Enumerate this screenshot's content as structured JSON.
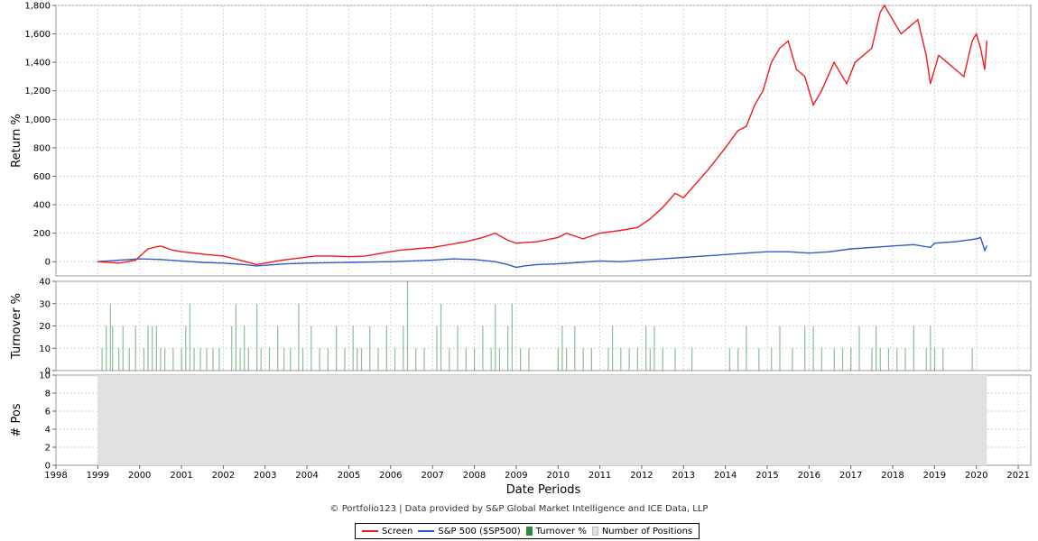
{
  "credit": "© Portfolio123 | Data provided by S&P Global Market Intelligence and ICE Data, LLP",
  "colors": {
    "screen": "#ee1c1c",
    "benchmark": "#2f5bc4",
    "turnover": "#2e8b3e",
    "positions": "#e0e0e0",
    "grid": "#d6d6d6"
  },
  "chart_data": [
    {
      "type": "line",
      "ylabel": "Return %",
      "xlabel": "Date Periods",
      "xlim": [
        1998,
        2021.3
      ],
      "ylim": [
        -100,
        1800
      ],
      "yticks": [
        0,
        200,
        400,
        600,
        800,
        1000,
        1200,
        1400,
        1600,
        1800
      ],
      "ytick_labels": [
        "0",
        "200",
        "400",
        "600",
        "800",
        "1,000",
        "1,200",
        "1,400",
        "1,600",
        "1,800"
      ],
      "xticks": [
        1998,
        1999,
        2000,
        2001,
        2002,
        2003,
        2004,
        2005,
        2006,
        2007,
        2008,
        2009,
        2010,
        2011,
        2012,
        2013,
        2014,
        2015,
        2016,
        2017,
        2018,
        2019,
        2020,
        2021
      ],
      "grid": true,
      "series": [
        {
          "name": "Screen",
          "x": [
            1999.0,
            1999.5,
            1999.9,
            2000.2,
            2000.5,
            2000.8,
            2001.0,
            2001.3,
            2001.6,
            2002.0,
            2002.4,
            2002.8,
            2003.0,
            2003.4,
            2003.8,
            2004.2,
            2004.6,
            2005.0,
            2005.4,
            2005.8,
            2006.2,
            2006.6,
            2007.0,
            2007.4,
            2007.8,
            2008.2,
            2008.5,
            2008.8,
            2009.0,
            2009.5,
            2010.0,
            2010.2,
            2010.6,
            2011.0,
            2011.5,
            2011.9,
            2012.2,
            2012.5,
            2012.8,
            2013.0,
            2013.3,
            2013.6,
            2014.0,
            2014.3,
            2014.5,
            2014.7,
            2014.9,
            2015.1,
            2015.3,
            2015.5,
            2015.7,
            2015.9,
            2016.1,
            2016.3,
            2016.6,
            2016.9,
            2017.1,
            2017.3,
            2017.5,
            2017.7,
            2017.8,
            2018.0,
            2018.2,
            2018.4,
            2018.6,
            2018.8,
            2018.9,
            2019.1,
            2019.3,
            2019.5,
            2019.7,
            2019.9,
            2020.0,
            2020.1,
            2020.2,
            2020.25
          ],
          "y": [
            0,
            -10,
            10,
            90,
            110,
            80,
            70,
            60,
            50,
            40,
            10,
            -20,
            -10,
            10,
            25,
            40,
            40,
            35,
            40,
            60,
            80,
            90,
            100,
            120,
            140,
            170,
            200,
            150,
            130,
            140,
            170,
            200,
            160,
            200,
            220,
            240,
            300,
            380,
            480,
            450,
            550,
            650,
            800,
            920,
            950,
            1100,
            1200,
            1400,
            1500,
            1550,
            1350,
            1300,
            1100,
            1200,
            1400,
            1250,
            1400,
            1450,
            1500,
            1750,
            1800,
            1700,
            1600,
            1650,
            1700,
            1450,
            1250,
            1450,
            1400,
            1350,
            1300,
            1550,
            1600,
            1500,
            1350,
            1550
          ]
        },
        {
          "name": "S&P 500 ($SP500)",
          "x": [
            1999.0,
            1999.5,
            2000.0,
            2000.5,
            2001.0,
            2001.5,
            2002.0,
            2002.5,
            2002.8,
            2003.0,
            2003.5,
            2004.0,
            2005.0,
            2006.0,
            2007.0,
            2007.5,
            2008.0,
            2008.5,
            2008.8,
            2009.0,
            2009.2,
            2009.5,
            2010.0,
            2010.5,
            2011.0,
            2011.5,
            2012.0,
            2012.5,
            2013.0,
            2013.5,
            2014.0,
            2014.5,
            2015.0,
            2015.5,
            2016.0,
            2016.5,
            2017.0,
            2017.5,
            2018.0,
            2018.5,
            2018.9,
            2019.0,
            2019.5,
            2020.0,
            2020.1,
            2020.2,
            2020.25
          ],
          "y": [
            0,
            10,
            20,
            15,
            5,
            -5,
            -10,
            -20,
            -30,
            -25,
            -15,
            -10,
            -5,
            0,
            10,
            20,
            15,
            0,
            -20,
            -40,
            -30,
            -20,
            -15,
            -5,
            5,
            0,
            10,
            20,
            30,
            40,
            50,
            60,
            70,
            70,
            60,
            70,
            90,
            100,
            110,
            120,
            100,
            130,
            140,
            160,
            170,
            80,
            110
          ]
        }
      ]
    },
    {
      "type": "bar",
      "ylabel": "Turnover %",
      "ylim": [
        0,
        40
      ],
      "yticks": [
        0,
        10,
        20,
        30,
        40
      ],
      "ytick_labels": [
        "0",
        "10",
        "20",
        "30",
        "40"
      ],
      "series": [
        {
          "name": "Turnover %",
          "x": [
            1999.1,
            1999.2,
            1999.3,
            1999.35,
            1999.5,
            1999.6,
            1999.75,
            1999.9,
            2000.1,
            2000.2,
            2000.3,
            2000.4,
            2000.5,
            2000.6,
            2000.8,
            2001.0,
            2001.1,
            2001.2,
            2001.3,
            2001.45,
            2001.6,
            2001.75,
            2001.9,
            2002.2,
            2002.3,
            2002.4,
            2002.5,
            2002.6,
            2002.8,
            2002.9,
            2003.1,
            2003.3,
            2003.45,
            2003.6,
            2003.8,
            2003.9,
            2004.1,
            2004.3,
            2004.5,
            2004.7,
            2004.9,
            2005.1,
            2005.2,
            2005.3,
            2005.5,
            2005.7,
            2005.9,
            2006.1,
            2006.3,
            2006.4,
            2006.6,
            2006.8,
            2007.1,
            2007.2,
            2007.4,
            2007.6,
            2007.8,
            2008.0,
            2008.2,
            2008.4,
            2008.5,
            2008.6,
            2008.8,
            2008.9,
            2009.1,
            2009.3,
            2010.0,
            2010.1,
            2010.2,
            2010.4,
            2010.6,
            2010.8,
            2011.2,
            2011.3,
            2011.5,
            2011.7,
            2011.9,
            2012.1,
            2012.2,
            2012.3,
            2012.5,
            2012.8,
            2013.2,
            2014.1,
            2014.3,
            2014.5,
            2014.8,
            2015.1,
            2015.3,
            2015.6,
            2015.9,
            2016.1,
            2016.3,
            2016.6,
            2016.8,
            2017.0,
            2017.2,
            2017.5,
            2017.6,
            2017.7,
            2017.9,
            2018.1,
            2018.3,
            2018.5,
            2018.8,
            2018.9,
            2019.0,
            2019.2,
            2019.9
          ],
          "values": [
            10,
            20,
            30,
            20,
            10,
            20,
            10,
            20,
            10,
            20,
            20,
            20,
            10,
            10,
            10,
            10,
            20,
            30,
            10,
            10,
            10,
            10,
            10,
            20,
            30,
            10,
            20,
            10,
            30,
            10,
            10,
            20,
            10,
            10,
            30,
            10,
            20,
            10,
            10,
            20,
            10,
            20,
            10,
            10,
            20,
            10,
            20,
            10,
            20,
            40,
            10,
            10,
            20,
            30,
            10,
            20,
            10,
            10,
            20,
            10,
            30,
            10,
            20,
            30,
            10,
            10,
            10,
            20,
            10,
            20,
            10,
            10,
            10,
            20,
            10,
            10,
            10,
            20,
            10,
            20,
            10,
            10,
            10,
            10,
            10,
            20,
            10,
            10,
            20,
            10,
            20,
            20,
            10,
            10,
            10,
            10,
            20,
            10,
            20,
            10,
            10,
            10,
            10,
            20,
            10,
            20,
            10,
            10,
            10
          ]
        }
      ]
    },
    {
      "type": "area",
      "ylabel": "# Pos",
      "ylim": [
        0,
        10
      ],
      "yticks": [
        0,
        2,
        4,
        6,
        8,
        10
      ],
      "ytick_labels": [
        "0",
        "2",
        "4",
        "6",
        "8",
        "10"
      ],
      "series": [
        {
          "name": "Number of Positions",
          "x": [
            1999.0,
            2020.25
          ],
          "values": [
            10,
            10
          ]
        }
      ]
    }
  ],
  "legend": {
    "placement": "bottom-center",
    "items": [
      {
        "label": "Screen",
        "kind": "line",
        "color": "#ee1c1c"
      },
      {
        "label": "S&P 500 ($SP500)",
        "kind": "line",
        "color": "#2f5bc4"
      },
      {
        "label": "Turnover %",
        "kind": "square",
        "color": "#2e8b3e"
      },
      {
        "label": "Number of Positions",
        "kind": "square",
        "color": "#e0e0e0"
      }
    ]
  }
}
